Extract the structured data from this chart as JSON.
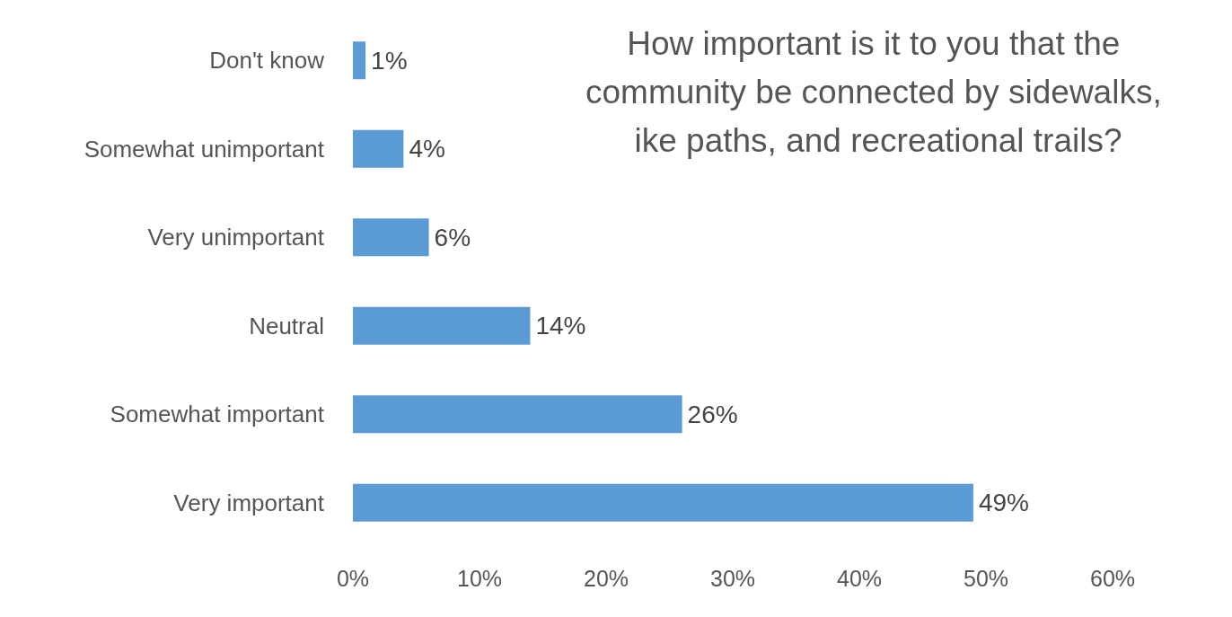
{
  "chart_data": {
    "type": "bar",
    "orientation": "horizontal",
    "title": "How important is it to you that the community be connected by sidewalks, ike paths, and recreational trails?",
    "categories": [
      "Don't know",
      "Somewhat unimportant",
      "Very unimportant",
      "Neutral",
      "Somewhat important",
      "Very important"
    ],
    "values": [
      1,
      4,
      6,
      14,
      26,
      49
    ],
    "value_labels": [
      "1%",
      "4%",
      "6%",
      "14%",
      "26%",
      "49%"
    ],
    "color": "#5b9bd5",
    "xlim": [
      0,
      60
    ],
    "xticks": [
      {
        "value": 0,
        "label": "0%"
      },
      {
        "value": 10,
        "label": "10%"
      },
      {
        "value": 20,
        "label": "20%"
      },
      {
        "value": 30,
        "label": "30%"
      },
      {
        "value": 40,
        "label": "40%"
      },
      {
        "value": 50,
        "label": "50%"
      },
      {
        "value": 60,
        "label": "60%"
      }
    ],
    "grid": false
  }
}
